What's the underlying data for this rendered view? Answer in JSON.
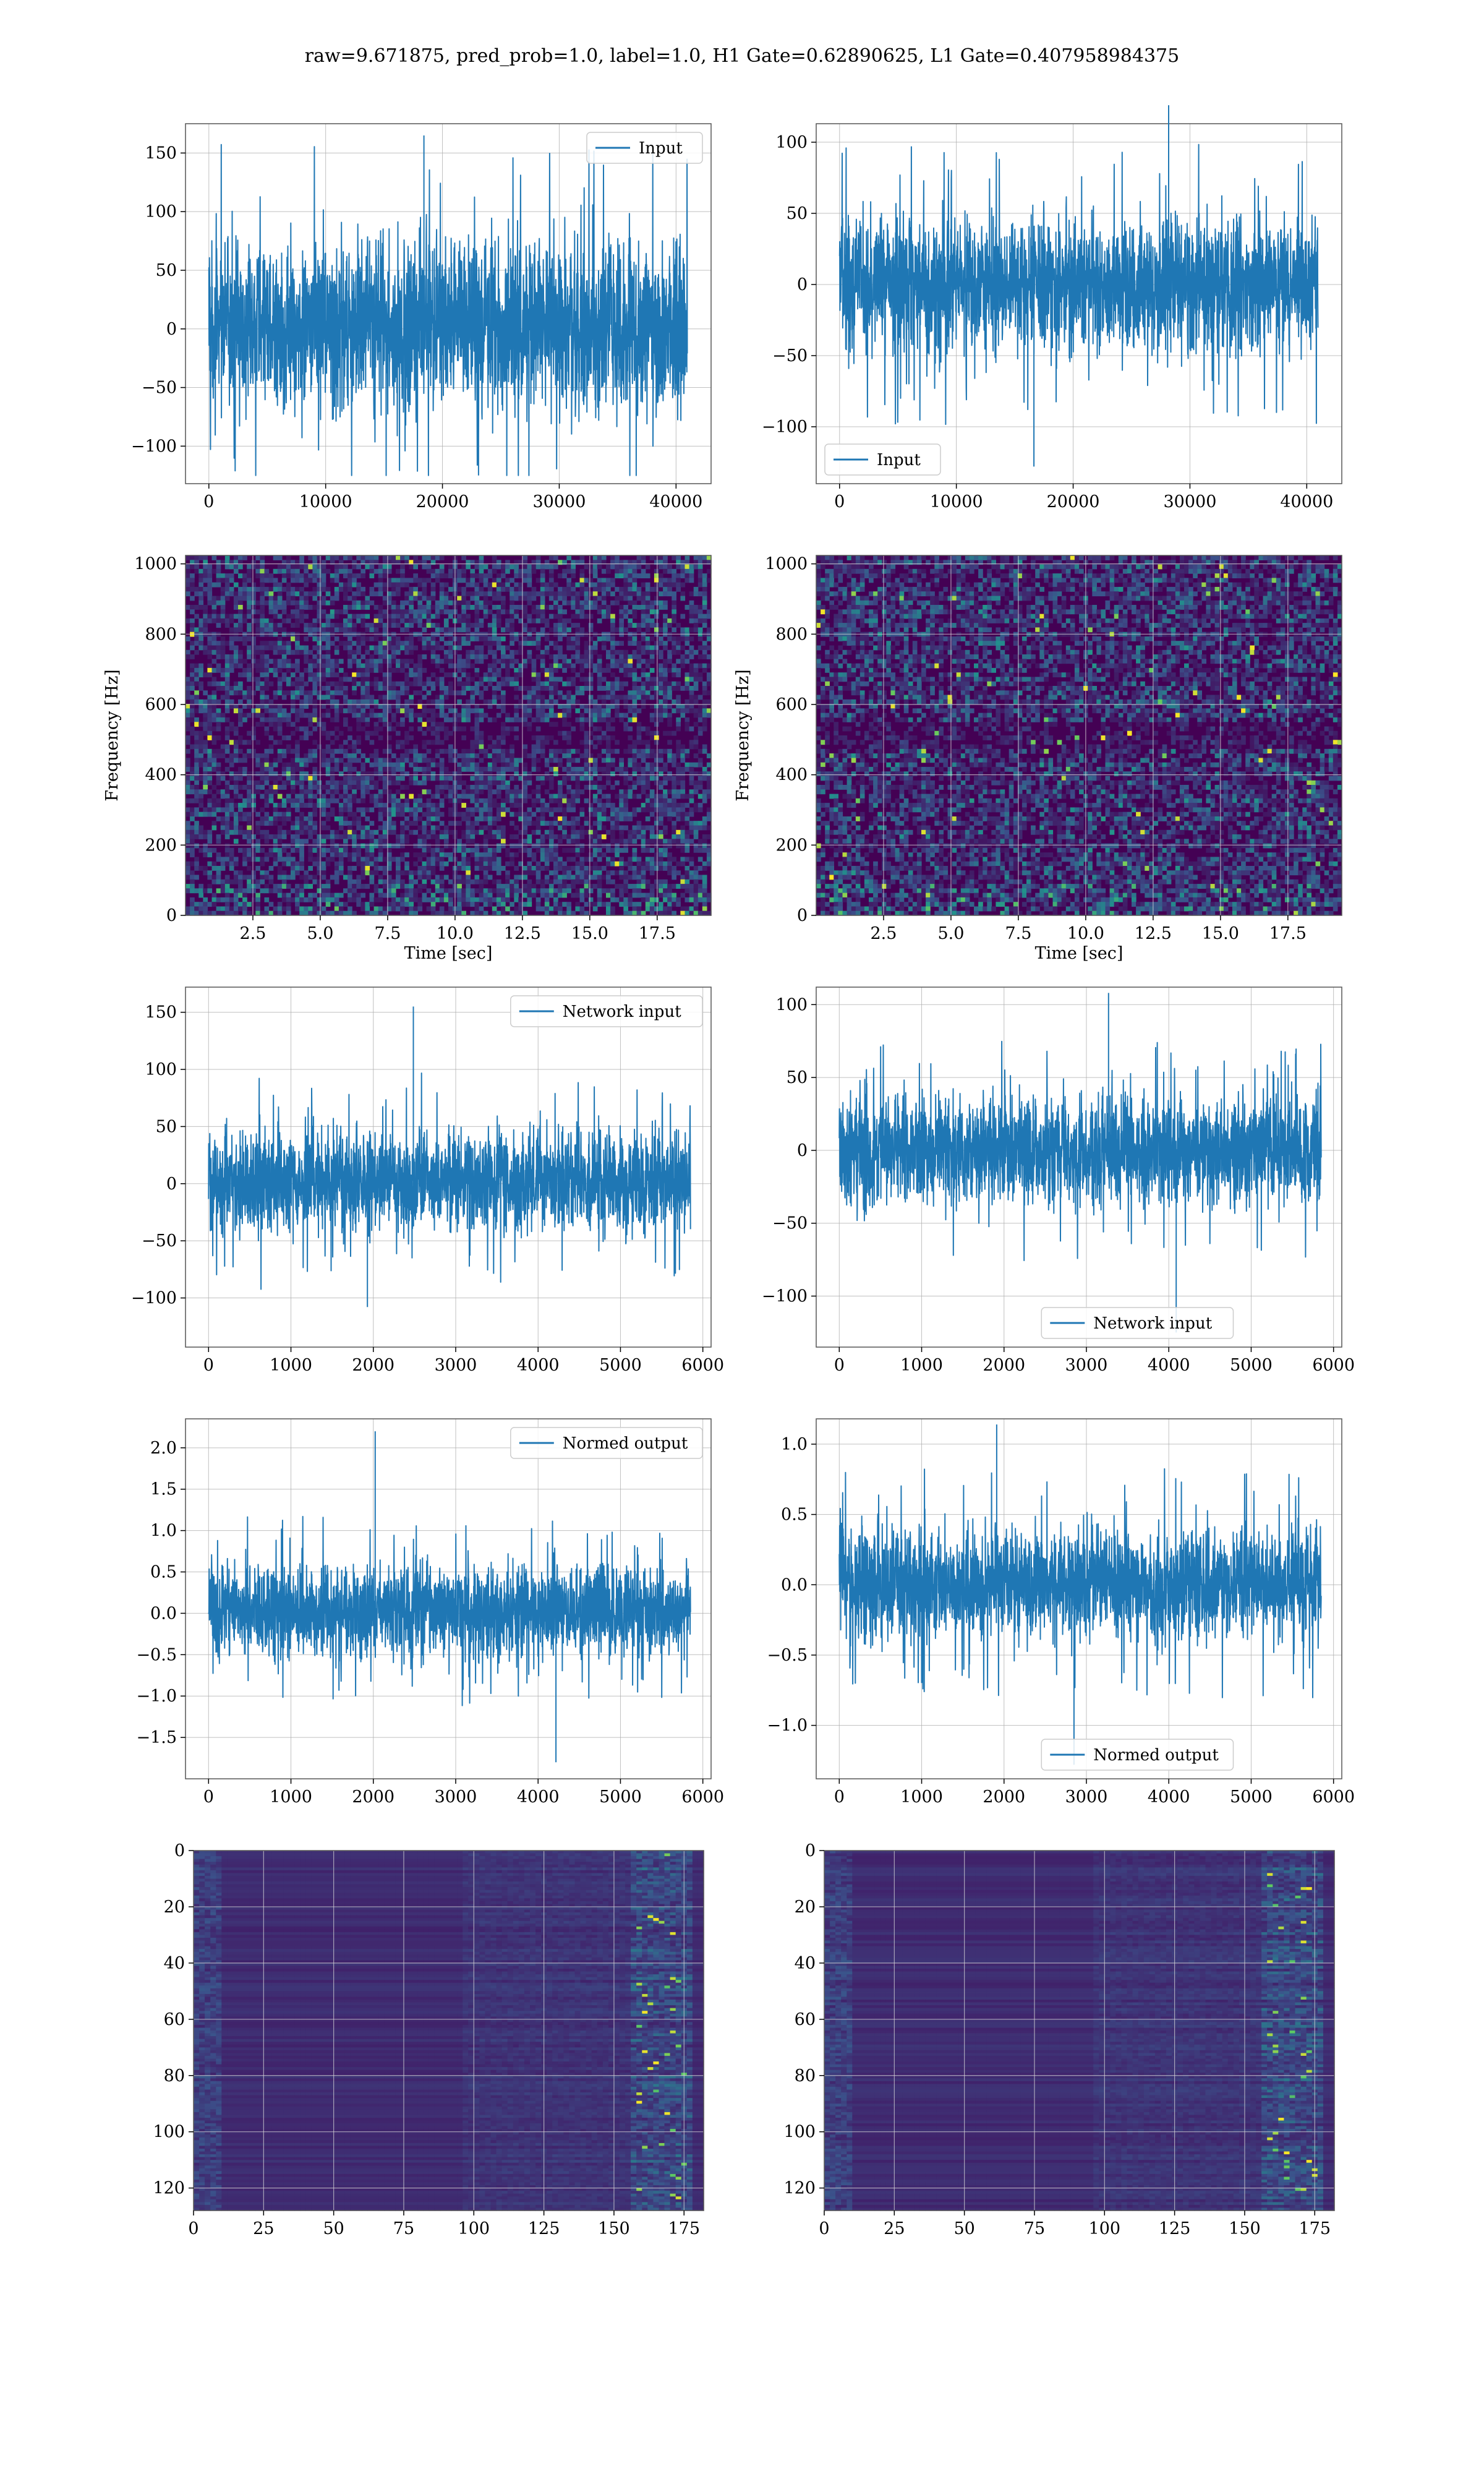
{
  "suptitle": "raw=9.671875, pred_prob=1.0, label=1.0, H1 Gate=0.62890625, L1 Gate=0.407958984375",
  "colors": {
    "series": "#1f77b4",
    "grid": "#b0b0b0",
    "heat_low": "#440154",
    "heat_mid": "#21918c",
    "heat_high": "#fde725"
  },
  "chart_data": [
    {
      "type": "line",
      "legend": "Input",
      "legend_loc": "upper-right",
      "xticks": [
        "0",
        "10000",
        "20000",
        "30000",
        "40000"
      ],
      "yticks": [
        "−100",
        "−50",
        "0",
        "50",
        "100",
        "150"
      ],
      "xlim": [
        -2000,
        43000
      ],
      "ylim": [
        -132,
        175
      ],
      "x_extent": [
        0,
        40960
      ],
      "envelope": [
        -75,
        80
      ],
      "peak_range": [
        -125,
        165
      ]
    },
    {
      "type": "line",
      "legend": "Input",
      "legend_loc": "lower-left",
      "xticks": [
        "0",
        "10000",
        "20000",
        "30000",
        "40000"
      ],
      "yticks": [
        "−100",
        "−50",
        "0",
        "50",
        "100"
      ],
      "xlim": [
        -2000,
        43000
      ],
      "ylim": [
        -140,
        113
      ],
      "x_extent": [
        0,
        40960
      ],
      "envelope": [
        -50,
        50
      ],
      "peak_range": [
        -128,
        126
      ]
    },
    {
      "type": "heatmap",
      "xticks": [
        "2.5",
        "5.0",
        "7.5",
        "10.0",
        "12.5",
        "15.0",
        "17.5"
      ],
      "yticks": [
        "0",
        "200",
        "400",
        "600",
        "800",
        "1000"
      ],
      "xlabel": "Time [sec]",
      "ylabel": "Frequency [Hz]",
      "xlim": [
        0,
        19.5
      ],
      "ylim": [
        0,
        1024
      ]
    },
    {
      "type": "heatmap",
      "xticks": [
        "2.5",
        "5.0",
        "7.5",
        "10.0",
        "12.5",
        "15.0",
        "17.5"
      ],
      "yticks": [
        "0",
        "200",
        "400",
        "600",
        "800",
        "1000"
      ],
      "xlabel": "Time [sec]",
      "ylabel": "Frequency [Hz]",
      "xlim": [
        0,
        19.5
      ],
      "ylim": [
        0,
        1024
      ]
    },
    {
      "type": "line",
      "legend": "Network input",
      "legend_loc": "upper-right",
      "xticks": [
        "0",
        "1000",
        "2000",
        "3000",
        "4000",
        "5000",
        "6000"
      ],
      "yticks": [
        "−100",
        "−50",
        "0",
        "50",
        "100",
        "150"
      ],
      "xlim": [
        -280,
        6100
      ],
      "ylim": [
        -143,
        172
      ],
      "x_extent": [
        0,
        5850
      ],
      "envelope": [
        -45,
        50
      ],
      "peak_range": [
        -108,
        155
      ]
    },
    {
      "type": "line",
      "legend": "Network input",
      "legend_loc": "lower-right",
      "xticks": [
        "0",
        "1000",
        "2000",
        "3000",
        "4000",
        "5000",
        "6000"
      ],
      "yticks": [
        "−100",
        "−50",
        "0",
        "50",
        "100"
      ],
      "xlim": [
        -280,
        6100
      ],
      "ylim": [
        -135,
        112
      ],
      "x_extent": [
        0,
        5850
      ],
      "envelope": [
        -40,
        40
      ],
      "peak_range": [
        -125,
        108
      ]
    },
    {
      "type": "line",
      "legend": "Normed output",
      "legend_loc": "upper-right",
      "xticks": [
        "0",
        "1000",
        "2000",
        "3000",
        "4000",
        "5000",
        "6000"
      ],
      "yticks": [
        "−1.5",
        "−1.0",
        "−0.5",
        "0.0",
        "0.5",
        "1.0",
        "1.5",
        "2.0"
      ],
      "xlim": [
        -280,
        6100
      ],
      "ylim": [
        -2.0,
        2.35
      ],
      "x_extent": [
        0,
        5850
      ],
      "envelope": [
        -0.55,
        0.6
      ],
      "peak_range": [
        -1.8,
        2.2
      ]
    },
    {
      "type": "line",
      "legend": "Normed output",
      "legend_loc": "lower-right",
      "xticks": [
        "0",
        "1000",
        "2000",
        "3000",
        "4000",
        "5000",
        "6000"
      ],
      "yticks": [
        "−1.0",
        "−0.5",
        "0.0",
        "0.5",
        "1.0"
      ],
      "xlim": [
        -280,
        6100
      ],
      "ylim": [
        -1.38,
        1.18
      ],
      "x_extent": [
        0,
        5850
      ],
      "envelope": [
        -0.4,
        0.42
      ],
      "peak_range": [
        -1.28,
        1.14
      ]
    },
    {
      "type": "heatmap",
      "xticks": [
        "0",
        "25",
        "50",
        "75",
        "100",
        "125",
        "150",
        "175"
      ],
      "yticks": [
        "0",
        "20",
        "40",
        "60",
        "80",
        "100",
        "120"
      ],
      "xlim": [
        0,
        182
      ],
      "ylim": [
        128,
        0
      ]
    },
    {
      "type": "heatmap",
      "xticks": [
        "0",
        "25",
        "50",
        "75",
        "100",
        "125",
        "150",
        "175"
      ],
      "yticks": [
        "0",
        "20",
        "40",
        "60",
        "80",
        "100",
        "120"
      ],
      "xlim": [
        0,
        182
      ],
      "ylim": [
        128,
        0
      ]
    }
  ]
}
